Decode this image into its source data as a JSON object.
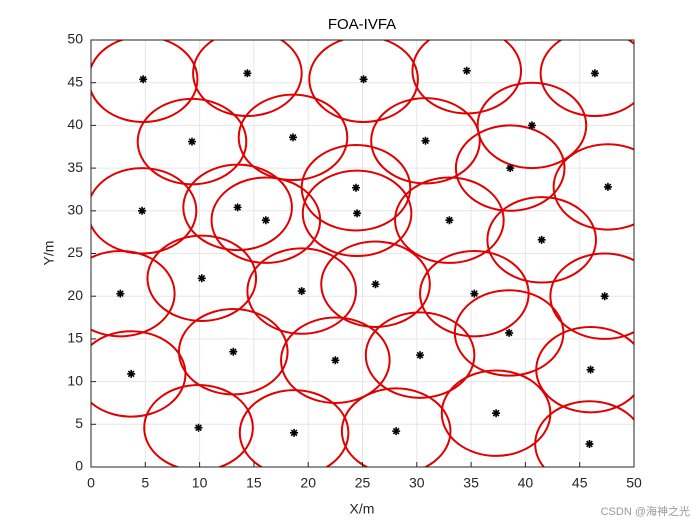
{
  "chart_data": {
    "type": "scatter",
    "title": "FOA-IVFA",
    "x_label": "X/m",
    "y_label": "Y/m",
    "xlim": [
      0,
      50
    ],
    "ylim": [
      0,
      50
    ],
    "xticks": [
      0,
      5,
      10,
      15,
      20,
      25,
      30,
      35,
      40,
      45,
      50
    ],
    "yticks": [
      0,
      5,
      10,
      15,
      20,
      25,
      30,
      35,
      40,
      45,
      50
    ],
    "grid": true,
    "radius": 5,
    "circle_color": "#e00000",
    "color": "#000000",
    "x": [
      4.8,
      14.4,
      25.1,
      34.6,
      46.4,
      9.3,
      18.6,
      30.8,
      40.6,
      38.6,
      47.6,
      4.7,
      13.5,
      16.1,
      24.4,
      24.5,
      33.0,
      41.5,
      2.7,
      10.2,
      19.4,
      26.2,
      35.3,
      47.3,
      38.5,
      3.7,
      13.1,
      22.5,
      30.3,
      46.0,
      37.3,
      9.9,
      18.7,
      28.1,
      45.9
    ],
    "y": [
      45.4,
      46.1,
      45.4,
      46.4,
      46.1,
      38.1,
      38.6,
      38.2,
      40.0,
      35.0,
      32.8,
      30.0,
      30.4,
      28.9,
      32.7,
      29.7,
      28.9,
      26.6,
      20.3,
      22.1,
      20.6,
      21.4,
      20.3,
      20.0,
      15.7,
      10.9,
      13.5,
      12.5,
      13.1,
      11.4,
      6.3,
      4.6,
      4.0,
      4.2,
      2.7
    ],
    "watermark": "CSDN @海神之光"
  }
}
